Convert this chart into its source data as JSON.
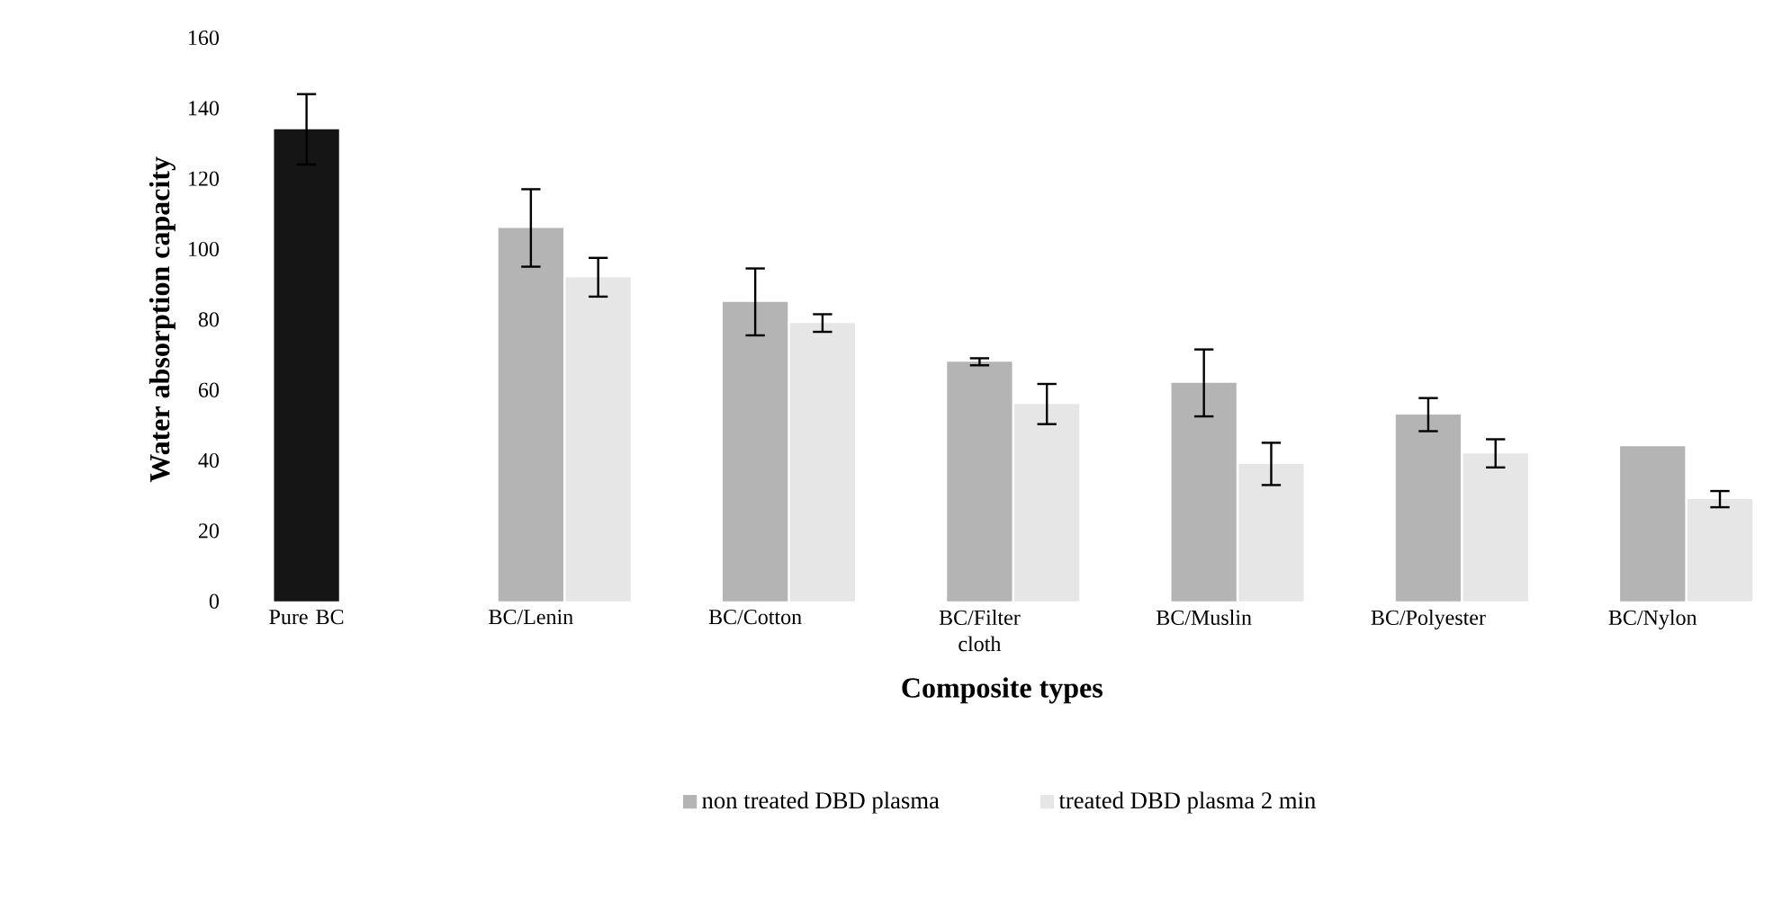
{
  "chart_data": {
    "type": "bar",
    "xlabel": "Composite types",
    "ylabel": "Water absorption capacity",
    "categories": [
      "Pure  BC",
      "BC/Lenin",
      "BC/Cotton",
      "BC/Filter cloth",
      "BC/Muslin",
      "BC/Polyester",
      "BC/Nylon"
    ],
    "series": [
      {
        "name": "non treated DBD  plasma",
        "color": "#b4b4b4",
        "colors": [
          "#151515",
          "#b4b4b4",
          "#b4b4b4",
          "#b4b4b4",
          "#b4b4b4",
          "#b4b4b4",
          "#b4b4b4"
        ],
        "values": [
          134,
          106,
          85,
          68,
          62,
          53,
          44
        ],
        "errors": [
          10,
          11,
          9.5,
          1,
          9.5,
          4.7,
          null
        ]
      },
      {
        "name": "treated DBD  plasma 2 min",
        "color": "#e6e6e6",
        "values": [
          null,
          92,
          79,
          56,
          39,
          42,
          29
        ],
        "errors": [
          null,
          5.5,
          2.5,
          5.7,
          6,
          4,
          2.3
        ]
      }
    ],
    "ylim": [
      0,
      160
    ],
    "yticks": [
      0,
      20,
      40,
      60,
      80,
      100,
      120,
      140,
      160
    ],
    "grid": false,
    "legend": "bottom"
  }
}
